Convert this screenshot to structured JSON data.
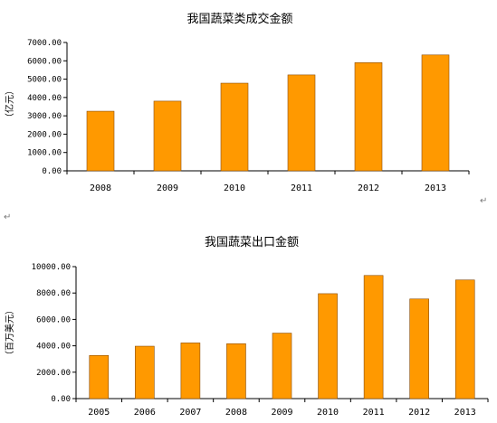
{
  "colors": {
    "bar": "#FF9900",
    "bar_edge": "#8a4b00",
    "axis": "#000000"
  },
  "chart_data": [
    {
      "type": "bar",
      "title": "我国蔬菜类成交金额",
      "ylabel": "（亿元）",
      "xlabel": "",
      "categories": [
        "2008",
        "2009",
        "2010",
        "2011",
        "2012",
        "2013"
      ],
      "values": [
        3250,
        3800,
        4780,
        5230,
        5900,
        6320
      ],
      "ylim": [
        0,
        7000
      ],
      "yticks": [
        "0.00",
        "1000.00",
        "2000.00",
        "3000.00",
        "4000.00",
        "5000.00",
        "6000.00",
        "7000.00"
      ],
      "grid": false,
      "legend": "none"
    },
    {
      "type": "bar",
      "title": "我国蔬菜出口金额",
      "ylabel": "（百万美元）",
      "xlabel": "",
      "categories": [
        "2005",
        "2006",
        "2007",
        "2008",
        "2009",
        "2010",
        "2011",
        "2012",
        "2013"
      ],
      "values": [
        3270,
        3970,
        4220,
        4160,
        4960,
        7950,
        9330,
        7550,
        8990
      ],
      "ylim": [
        0,
        10000
      ],
      "yticks": [
        "0.00",
        "2000.00",
        "4000.00",
        "6000.00",
        "8000.00",
        "10000.00"
      ],
      "grid": false,
      "legend": "none"
    }
  ],
  "marks": {
    "return_symbol": "↵"
  }
}
